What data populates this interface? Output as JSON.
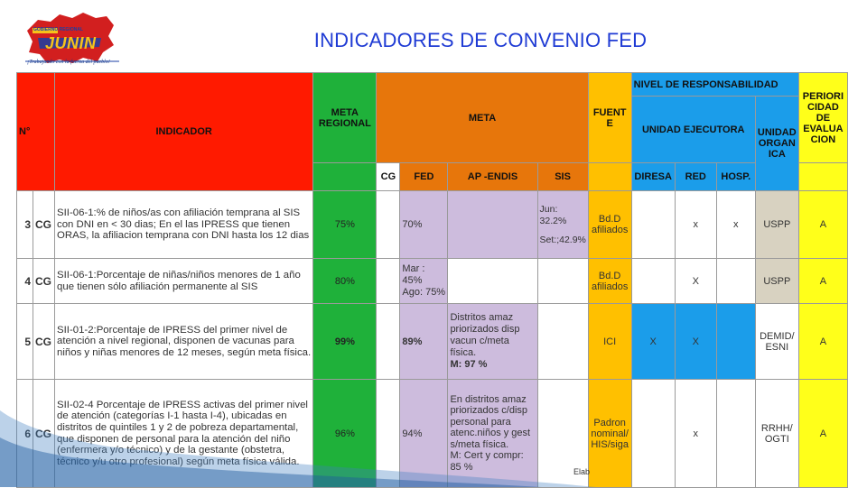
{
  "logo": {
    "brand": "JUNIN",
    "badge": "GOBIERNO REGIONAL",
    "tagline": "¡Trabajando con la fuerza del pueblo!"
  },
  "title": "INDICADORES DE CONVENIO  FED",
  "headers": {
    "n": "N°",
    "indicador": "INDICADOR",
    "meta_regional": "META REGIONAL",
    "meta": "META",
    "fuente": "FUENT E",
    "nivel": "NIVEL DE  RESPONSABILIDAD",
    "unidad_ejecutora": "UNIDAD EJECUTORA",
    "unidad_organica": "UNIDAD ORGAN ICA",
    "periodicidad": "PERIORI CIDAD DE EVALUA CION",
    "cg": "CG",
    "fed": "FED",
    "ap_endis": "AP -ENDIS",
    "sis": "SIS",
    "diresa": "DIRESA",
    "red": "RED",
    "hosp": "HOSP."
  },
  "rows": [
    {
      "n": "3",
      "cg": "CG",
      "indicador": "SII-06-1:% de niños/as con afiliación temprana al SIS con DNI en < 30 dias; En el las IPRESS que tienen ORAS, la afiliacion temprana con DNI hasta los 12 dias",
      "meta_regional": "75%",
      "meta_cg": "",
      "meta_fed": "70%",
      "ap_endis": "",
      "sis_1": "Jun: 32.2%",
      "sis_2": "Set:;42.9%",
      "fuente": "Bd.D afiliados",
      "diresa": "",
      "red": "x",
      "hosp": "x",
      "unidad_organica": "USPP",
      "periodicidad": "A"
    },
    {
      "n": "4",
      "cg": "CG",
      "indicador": "SII-06-1:Porcentaje de niñas/niños menores de 1 año que tienen sólo afiliación permanente al SIS",
      "meta_regional": "80%",
      "meta_cg": "",
      "meta_fed_1": "Mar : 45%",
      "meta_fed_2": "Ago: 75%",
      "ap_endis": "",
      "sis": "",
      "fuente": "Bd.D afiliados",
      "diresa": "",
      "red": "X",
      "hosp": "",
      "unidad_organica": "USPP",
      "periodicidad": "A"
    },
    {
      "n": "5",
      "cg": "CG",
      "indicador": "SII-01-2:Porcentaje de IPRESS del primer nivel de atención a nivel regional, disponen de vacunas para niños y niñas menores de 12 meses, según meta física.",
      "meta_regional": "99%",
      "meta_cg": "",
      "meta_fed": "89%",
      "ap_endis_1": "Distritos  amaz priorizados disp vacun c/meta física.",
      "ap_endis_2": "M: 97 %",
      "sis": "",
      "fuente": "ICI",
      "diresa": "X",
      "red": "X",
      "hosp": "",
      "unidad_organica": "DEMID/ ESNI",
      "periodicidad": "A"
    },
    {
      "n": "6",
      "cg": "CG",
      "indicador": "SII-02-4 Porcentaje de IPRESS activas del primer nivel de atención (categorías I-1 hasta I-4), ubicadas en distritos de quintiles 1 y 2 de pobreza departamental, que disponen de personal para la atención del niño (enfermera y/o técnico) y de la gestante (obstetra, técnico y/u otro profesional) según meta física válida.",
      "meta_regional": "96%",
      "meta_cg": "",
      "meta_fed": "94%",
      "ap_endis_1": "En distritos  amaz priorizados c/disp personal para atenc.niños y gest s/meta física.",
      "ap_endis_2": "M: Cert y compr: 85 %",
      "sis": "",
      "fuente": "Padron nominal/ HIS/siga",
      "diresa": "",
      "red": "x",
      "hosp": "",
      "unidad_organica": "RRHH/ OGTI",
      "periodicidad": "A"
    }
  ],
  "footer_text": "Elab"
}
